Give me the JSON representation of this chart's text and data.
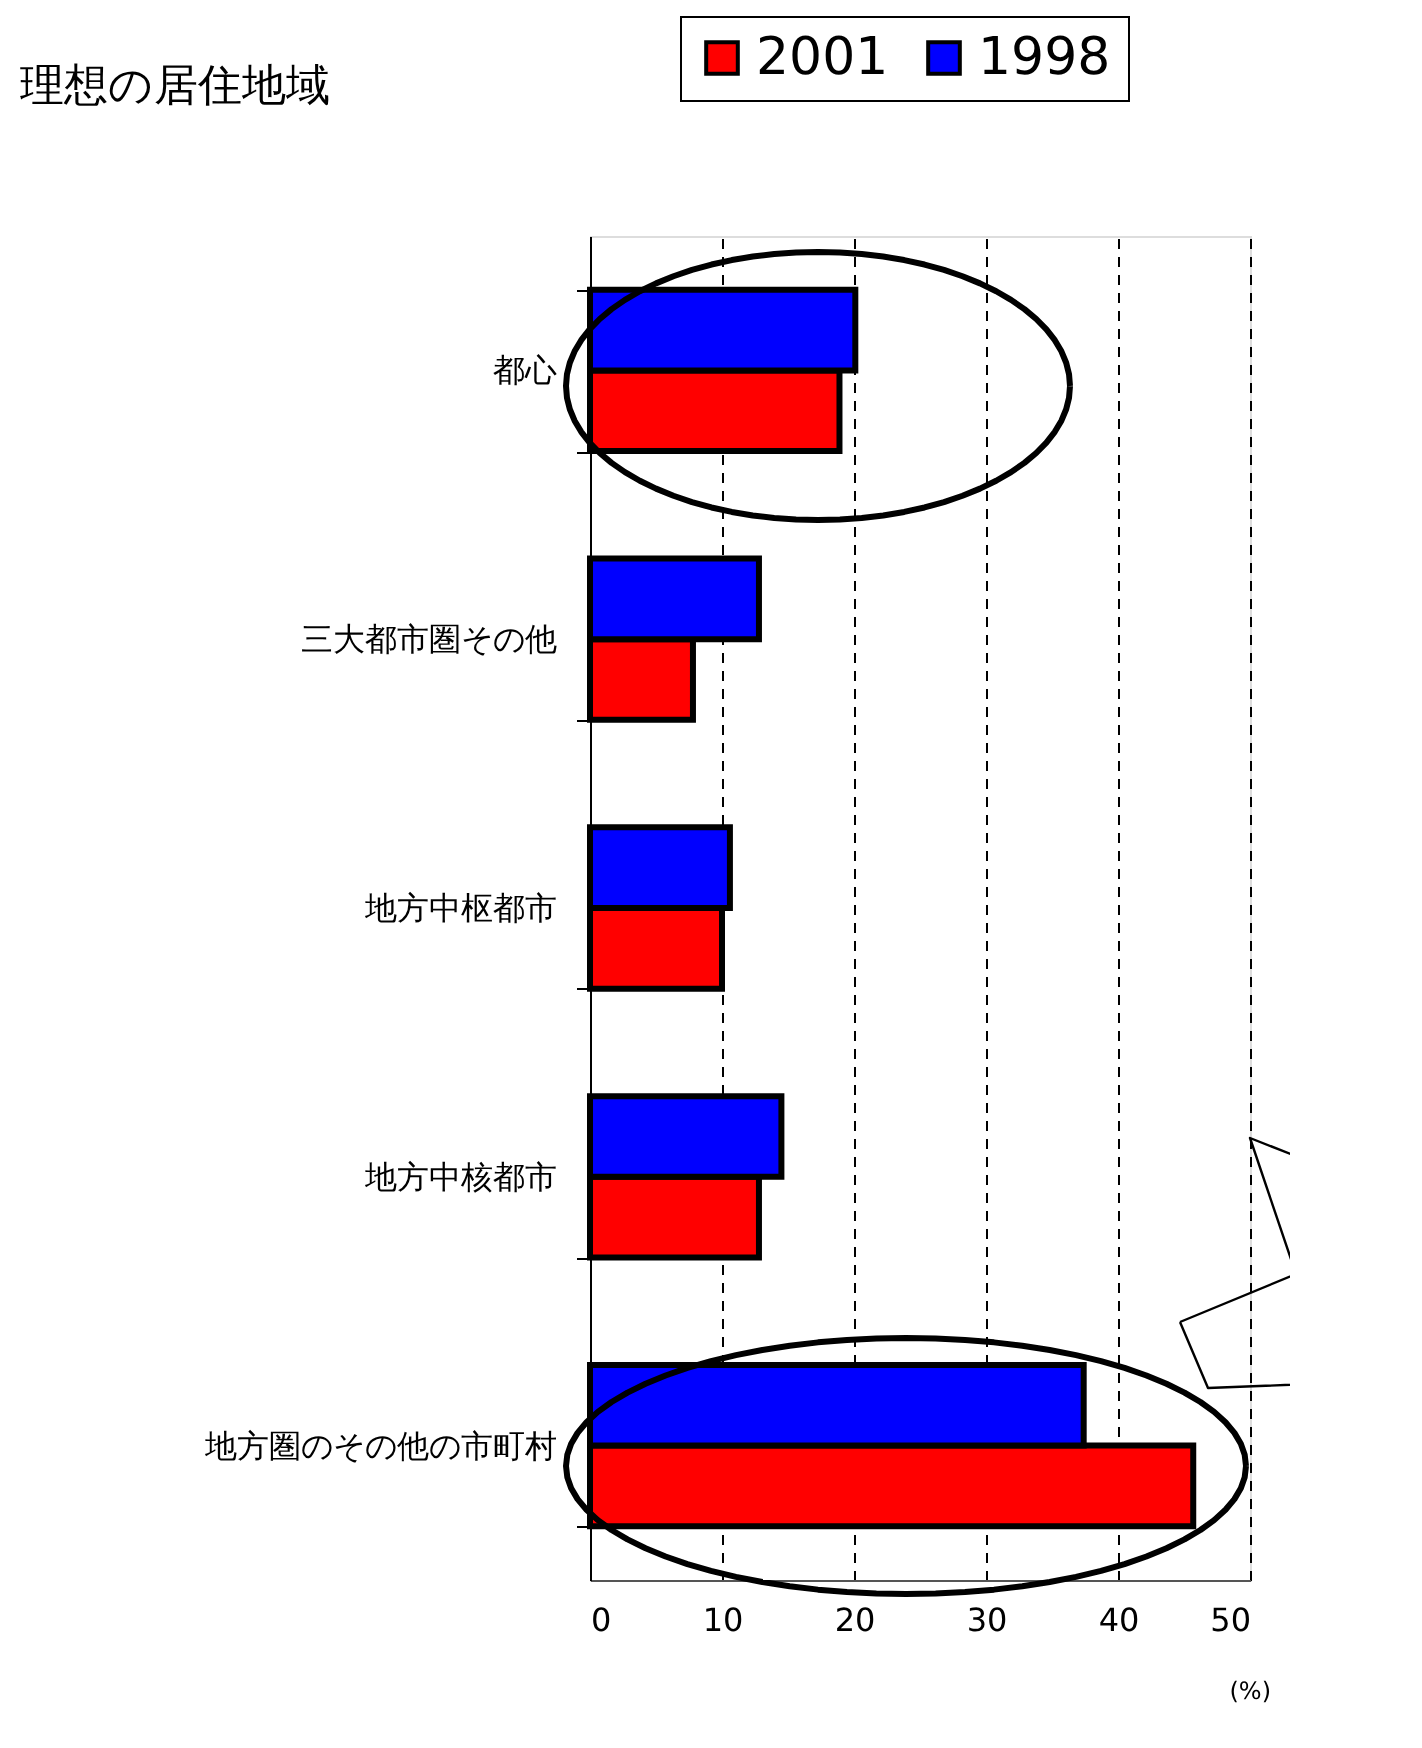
{
  "chart_data": {
    "type": "bar",
    "orientation": "horizontal",
    "title": "理想の居住地域",
    "xlabel": "(%)",
    "categories": [
      "都心",
      "三大都市圏その他",
      "地方中枢都市",
      "地方中核都市",
      "地方圏のその他の市町村"
    ],
    "series": [
      {
        "name": "2001",
        "color": "#ff0000",
        "values": [
          18.9,
          7.8,
          10.0,
          12.8,
          45.7
        ]
      },
      {
        "name": "1998",
        "color": "#0000ff",
        "values": [
          20.1,
          12.8,
          10.6,
          14.5,
          37.4
        ]
      }
    ],
    "xlim": [
      0,
      50
    ],
    "xticks": [
      0,
      10,
      20,
      30,
      40,
      50
    ],
    "grid": "x",
    "legend": "top",
    "line_style": "dashed"
  }
}
